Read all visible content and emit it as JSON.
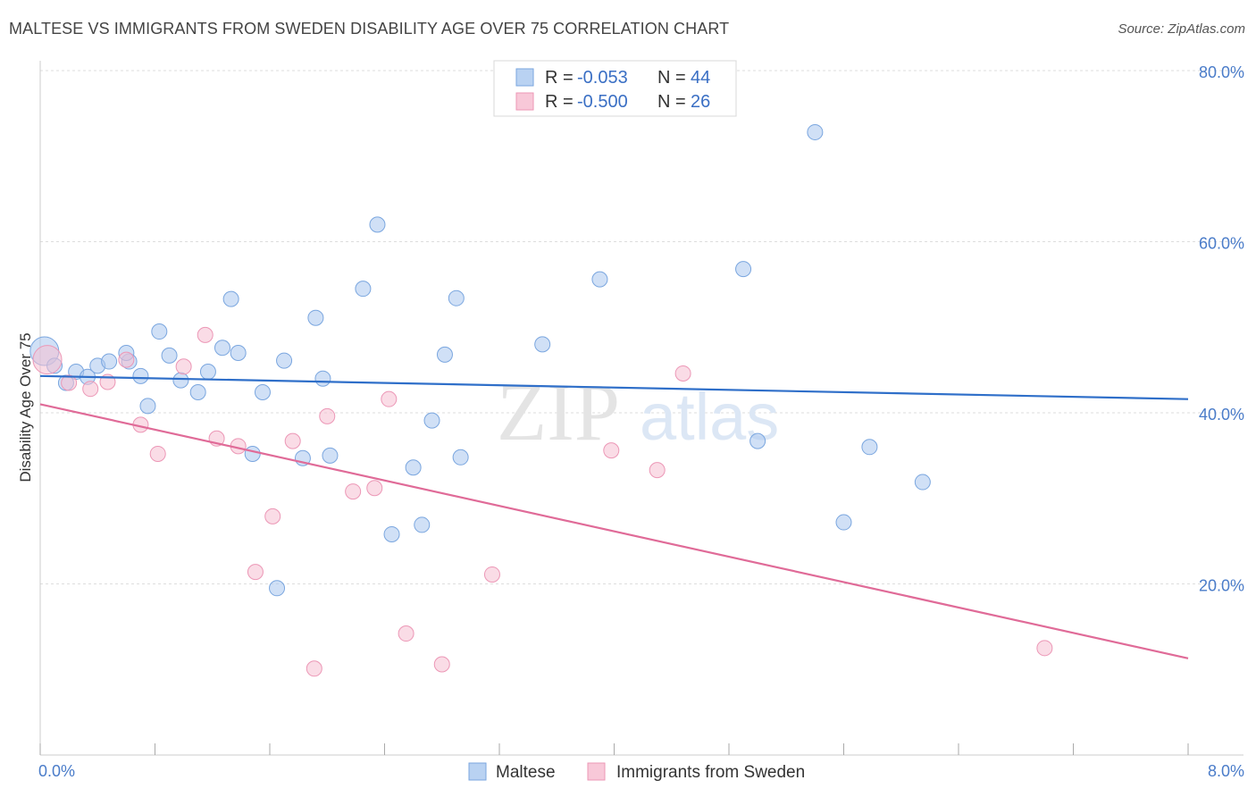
{
  "title": "MALTESE VS IMMIGRANTS FROM SWEDEN DISABILITY AGE OVER 75 CORRELATION CHART",
  "source": "Source: ZipAtlas.com",
  "watermark": {
    "zip": "ZIP",
    "atlas": "atlas"
  },
  "legend": {
    "rows": [
      {
        "r_label": "R = ",
        "r_value": "-0.053",
        "n_label": "N = ",
        "n_value": "44"
      },
      {
        "r_label": "R = ",
        "r_value": "-0.500",
        "n_label": "N = ",
        "n_value": "26"
      }
    ]
  },
  "chart_data": {
    "type": "scatter",
    "title": "MALTESE VS IMMIGRANTS FROM SWEDEN DISABILITY AGE OVER 75 CORRELATION CHART",
    "xlabel": "",
    "ylabel": "Disability Age Over 75",
    "xlim": [
      0,
      8
    ],
    "ylim": [
      0,
      80
    ],
    "x_tick_labels": [
      "0.0%",
      "8.0%"
    ],
    "y_ticks": [
      20,
      40,
      60,
      80
    ],
    "y_tick_labels": [
      "20.0%",
      "40.0%",
      "60.0%",
      "80.0%"
    ],
    "grid": true,
    "legend_position": "top-center",
    "series": [
      {
        "name": "Maltese",
        "color": "#a9c7ee",
        "stroke": "#7aa6df",
        "trend": {
          "x": [
            0,
            8
          ],
          "y": [
            44.3,
            41.6
          ],
          "color": "#2f6fc9"
        },
        "points": [
          [
            0.03,
            47.2
          ],
          [
            0.1,
            45.5
          ],
          [
            0.18,
            43.5
          ],
          [
            0.25,
            44.8
          ],
          [
            0.33,
            44.2
          ],
          [
            0.4,
            45.5
          ],
          [
            0.48,
            46.0
          ],
          [
            0.62,
            46.0
          ],
          [
            0.6,
            47.0
          ],
          [
            0.7,
            44.3
          ],
          [
            0.75,
            40.8
          ],
          [
            0.83,
            49.5
          ],
          [
            0.9,
            46.7
          ],
          [
            0.98,
            43.8
          ],
          [
            1.1,
            42.4
          ],
          [
            1.17,
            44.8
          ],
          [
            1.27,
            47.6
          ],
          [
            1.33,
            53.3
          ],
          [
            1.38,
            47.0
          ],
          [
            1.48,
            35.2
          ],
          [
            1.55,
            42.4
          ],
          [
            1.65,
            19.5
          ],
          [
            1.7,
            46.1
          ],
          [
            1.83,
            34.7
          ],
          [
            1.92,
            51.1
          ],
          [
            1.97,
            44.0
          ],
          [
            2.02,
            35.0
          ],
          [
            2.25,
            54.5
          ],
          [
            2.35,
            62.0
          ],
          [
            2.45,
            25.8
          ],
          [
            2.6,
            33.6
          ],
          [
            2.66,
            26.9
          ],
          [
            2.73,
            39.1
          ],
          [
            2.82,
            46.8
          ],
          [
            2.9,
            53.4
          ],
          [
            2.93,
            34.8
          ],
          [
            3.5,
            48.0
          ],
          [
            3.9,
            55.6
          ],
          [
            5.0,
            36.7
          ],
          [
            4.9,
            56.8
          ],
          [
            5.4,
            72.8
          ],
          [
            5.6,
            27.2
          ],
          [
            5.78,
            36.0
          ],
          [
            6.15,
            31.9
          ]
        ]
      },
      {
        "name": "Immigrants from Sweden",
        "color": "#f5bfd2",
        "stroke": "#ec97b6",
        "trend": {
          "x": [
            0,
            8
          ],
          "y": [
            41.0,
            11.3
          ],
          "color": "#e06b98"
        },
        "points": [
          [
            0.05,
            46.2
          ],
          [
            0.2,
            43.5
          ],
          [
            0.35,
            42.8
          ],
          [
            0.47,
            43.6
          ],
          [
            0.6,
            46.2
          ],
          [
            0.7,
            38.6
          ],
          [
            0.82,
            35.2
          ],
          [
            1.0,
            45.4
          ],
          [
            1.15,
            49.1
          ],
          [
            1.23,
            37.0
          ],
          [
            1.38,
            36.1
          ],
          [
            1.5,
            21.4
          ],
          [
            1.62,
            27.9
          ],
          [
            1.76,
            36.7
          ],
          [
            1.91,
            10.1
          ],
          [
            2.0,
            39.6
          ],
          [
            2.18,
            30.8
          ],
          [
            2.33,
            31.2
          ],
          [
            2.43,
            41.6
          ],
          [
            2.55,
            14.2
          ],
          [
            2.8,
            10.6
          ],
          [
            3.15,
            21.1
          ],
          [
            3.98,
            35.6
          ],
          [
            4.3,
            33.3
          ],
          [
            4.48,
            44.6
          ],
          [
            7.0,
            12.5
          ]
        ]
      }
    ]
  }
}
